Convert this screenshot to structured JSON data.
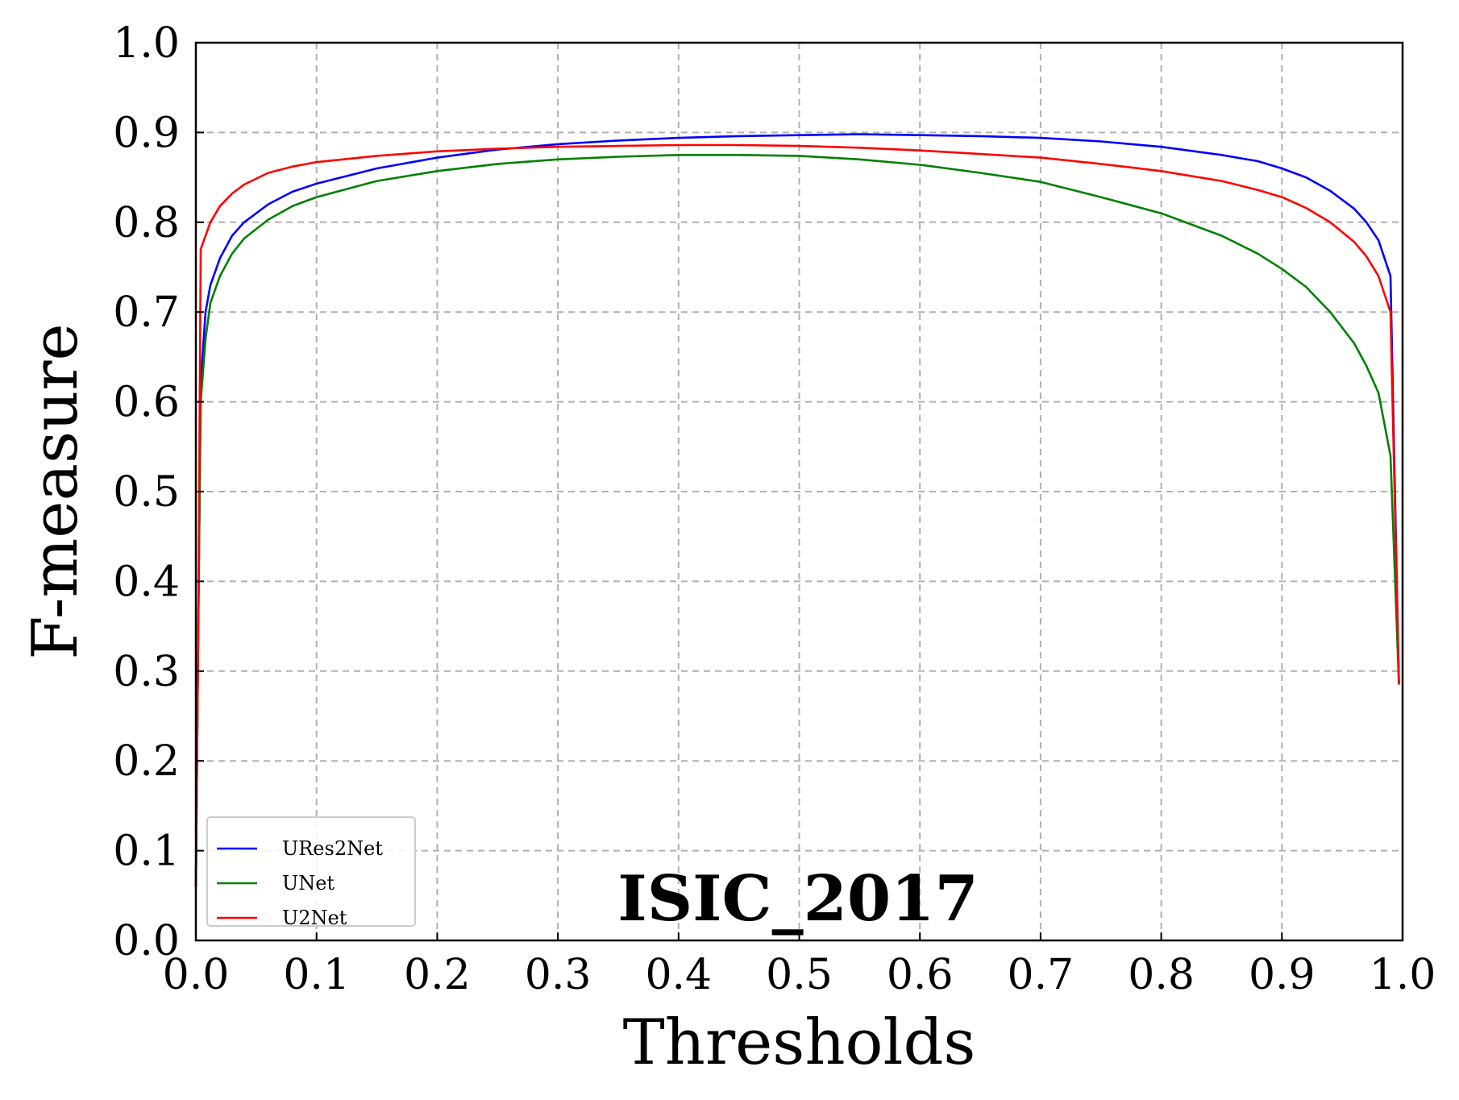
{
  "chart_data": {
    "type": "line",
    "title": "ISIC_2017",
    "xlabel": "Thresholds",
    "ylabel": "F-measure",
    "xlim": [
      0.0,
      1.0
    ],
    "ylim": [
      0.0,
      1.0
    ],
    "xticks": [
      "0.0",
      "0.1",
      "0.2",
      "0.3",
      "0.4",
      "0.5",
      "0.6",
      "0.7",
      "0.8",
      "0.9",
      "1.0"
    ],
    "yticks": [
      "0.0",
      "0.1",
      "0.2",
      "0.3",
      "0.4",
      "0.5",
      "0.6",
      "0.7",
      "0.8",
      "0.9",
      "1.0"
    ],
    "grid": true,
    "legend_position": "lower-left",
    "series": [
      {
        "name": "URes2Net",
        "color": "#0000ff",
        "points": [
          [
            0.0,
            0.06
          ],
          [
            0.002,
            0.35
          ],
          [
            0.004,
            0.62
          ],
          [
            0.008,
            0.7
          ],
          [
            0.012,
            0.73
          ],
          [
            0.02,
            0.76
          ],
          [
            0.03,
            0.785
          ],
          [
            0.04,
            0.8
          ],
          [
            0.06,
            0.82
          ],
          [
            0.08,
            0.834
          ],
          [
            0.1,
            0.843
          ],
          [
            0.15,
            0.86
          ],
          [
            0.2,
            0.872
          ],
          [
            0.25,
            0.881
          ],
          [
            0.3,
            0.887
          ],
          [
            0.35,
            0.891
          ],
          [
            0.4,
            0.894
          ],
          [
            0.45,
            0.896
          ],
          [
            0.5,
            0.897
          ],
          [
            0.55,
            0.898
          ],
          [
            0.6,
            0.897
          ],
          [
            0.65,
            0.896
          ],
          [
            0.7,
            0.894
          ],
          [
            0.75,
            0.89
          ],
          [
            0.8,
            0.884
          ],
          [
            0.85,
            0.875
          ],
          [
            0.88,
            0.868
          ],
          [
            0.9,
            0.86
          ],
          [
            0.92,
            0.85
          ],
          [
            0.94,
            0.835
          ],
          [
            0.96,
            0.815
          ],
          [
            0.97,
            0.8
          ],
          [
            0.98,
            0.78
          ],
          [
            0.99,
            0.74
          ],
          [
            0.997,
            0.285
          ]
        ]
      },
      {
        "name": "UNet",
        "color": "#008000",
        "points": [
          [
            0.0,
            0.06
          ],
          [
            0.002,
            0.35
          ],
          [
            0.004,
            0.6
          ],
          [
            0.008,
            0.67
          ],
          [
            0.012,
            0.71
          ],
          [
            0.02,
            0.74
          ],
          [
            0.03,
            0.765
          ],
          [
            0.04,
            0.782
          ],
          [
            0.06,
            0.803
          ],
          [
            0.08,
            0.818
          ],
          [
            0.1,
            0.828
          ],
          [
            0.15,
            0.846
          ],
          [
            0.2,
            0.857
          ],
          [
            0.25,
            0.865
          ],
          [
            0.3,
            0.87
          ],
          [
            0.35,
            0.873
          ],
          [
            0.4,
            0.875
          ],
          [
            0.45,
            0.875
          ],
          [
            0.5,
            0.874
          ],
          [
            0.55,
            0.87
          ],
          [
            0.6,
            0.864
          ],
          [
            0.65,
            0.855
          ],
          [
            0.7,
            0.845
          ],
          [
            0.75,
            0.828
          ],
          [
            0.8,
            0.81
          ],
          [
            0.85,
            0.785
          ],
          [
            0.88,
            0.765
          ],
          [
            0.9,
            0.748
          ],
          [
            0.92,
            0.728
          ],
          [
            0.94,
            0.7
          ],
          [
            0.96,
            0.665
          ],
          [
            0.97,
            0.64
          ],
          [
            0.98,
            0.61
          ],
          [
            0.99,
            0.54
          ],
          [
            0.997,
            0.285
          ]
        ]
      },
      {
        "name": "U2Net",
        "color": "#ff0000",
        "points": [
          [
            0.0,
            0.06
          ],
          [
            0.002,
            0.35
          ],
          [
            0.004,
            0.77
          ],
          [
            0.008,
            0.785
          ],
          [
            0.012,
            0.8
          ],
          [
            0.02,
            0.818
          ],
          [
            0.03,
            0.832
          ],
          [
            0.04,
            0.842
          ],
          [
            0.06,
            0.855
          ],
          [
            0.08,
            0.862
          ],
          [
            0.1,
            0.867
          ],
          [
            0.15,
            0.874
          ],
          [
            0.2,
            0.879
          ],
          [
            0.25,
            0.882
          ],
          [
            0.3,
            0.884
          ],
          [
            0.35,
            0.885
          ],
          [
            0.4,
            0.886
          ],
          [
            0.45,
            0.886
          ],
          [
            0.5,
            0.885
          ],
          [
            0.55,
            0.883
          ],
          [
            0.6,
            0.88
          ],
          [
            0.65,
            0.876
          ],
          [
            0.7,
            0.872
          ],
          [
            0.75,
            0.865
          ],
          [
            0.8,
            0.857
          ],
          [
            0.85,
            0.846
          ],
          [
            0.88,
            0.836
          ],
          [
            0.9,
            0.828
          ],
          [
            0.92,
            0.816
          ],
          [
            0.94,
            0.8
          ],
          [
            0.96,
            0.778
          ],
          [
            0.97,
            0.762
          ],
          [
            0.98,
            0.74
          ],
          [
            0.99,
            0.7
          ],
          [
            0.997,
            0.285
          ]
        ]
      }
    ]
  }
}
